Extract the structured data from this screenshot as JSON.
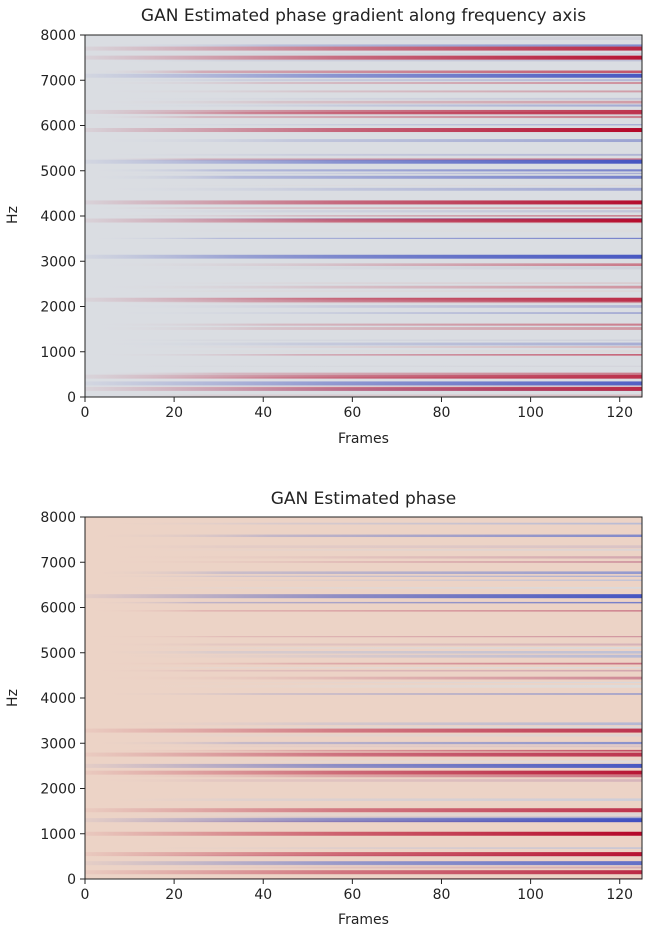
{
  "chart_data": [
    {
      "type": "heatmap",
      "title": "GAN Estimated phase gradient along frequency axis",
      "xlabel": "Frames",
      "ylabel": "Hz",
      "xlim": [
        0,
        125
      ],
      "ylim": [
        0,
        8000
      ],
      "xticks": [
        0,
        20,
        40,
        60,
        80,
        100,
        120
      ],
      "yticks": [
        0,
        1000,
        2000,
        3000,
        4000,
        5000,
        6000,
        7000,
        8000
      ],
      "colormap": "coolwarm",
      "pattern": {
        "base_color": "#dadde2",
        "rows": 96,
        "fade_in_frames": 50,
        "seed": 7,
        "density": 0.55,
        "strong_bands_hz": [
          180,
          300,
          450,
          2150,
          3100,
          3900,
          4300,
          5200,
          5900,
          6300,
          7100,
          7500,
          7700
        ]
      }
    },
    {
      "type": "heatmap",
      "title": "GAN Estimated phase",
      "xlabel": "Frames",
      "ylabel": "Hz",
      "xlim": [
        0,
        125
      ],
      "ylim": [
        0,
        8000
      ],
      "xticks": [
        0,
        20,
        40,
        60,
        80,
        100,
        120
      ],
      "yticks": [
        0,
        1000,
        2000,
        3000,
        4000,
        5000,
        6000,
        7000,
        8000
      ],
      "colormap": "coolwarm",
      "pattern": {
        "base_color": "#ecd3c6",
        "rows": 96,
        "fade_in_frames": 40,
        "seed": 19,
        "density": 0.45,
        "strong_bands_hz": [
          150,
          350,
          550,
          1000,
          1300,
          1520,
          2350,
          2500,
          2750,
          3280,
          6250
        ]
      }
    }
  ]
}
